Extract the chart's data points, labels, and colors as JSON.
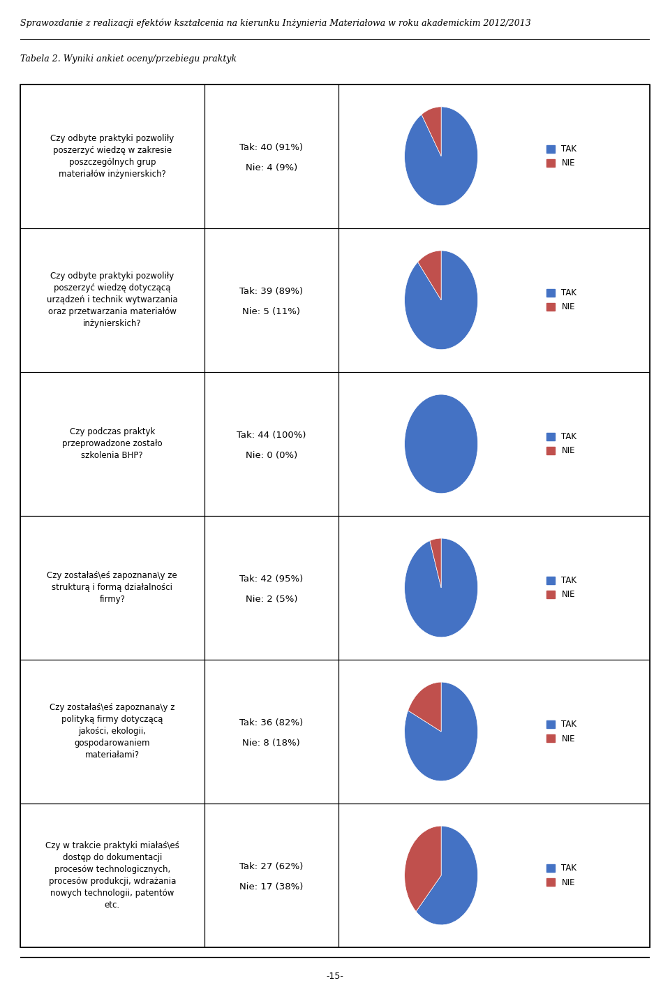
{
  "title": "Sprawozdanie z realizacji efektów kształcenia na kierunku Inżynieria Materiałowa w roku akademickim 2012/2013",
  "subtitle": "Tabela 2. Wyniki ankiet oceny/przebiegu praktyk",
  "page_number": "-15-",
  "tak_color": "#4472C4",
  "nie_color": "#C0504D",
  "rows": [
    {
      "question": "Czy odbyte praktyki pozwoliły\nposzerzyć wiedzę w zakresie\nposzczególnych grup\nmateriałów inżynierskich?",
      "tak_n": 40,
      "tak_pct": 91,
      "nie_n": 4,
      "nie_pct": 9
    },
    {
      "question": "Czy odbyte praktyki pozwoliły\nposzerzyć wiedzę dotyczącą\nurządzeń i technik wytwarzania\noraz przetwarzania materiałów\ninżynierskich?",
      "tak_n": 39,
      "tak_pct": 89,
      "nie_n": 5,
      "nie_pct": 11
    },
    {
      "question": "Czy podczas praktyk\nprzeprowadzone zostało\nszkolenia BHP?",
      "tak_n": 44,
      "tak_pct": 100,
      "nie_n": 0,
      "nie_pct": 0
    },
    {
      "question": "Czy zostałaś\\eś zapoznana\\y ze\nstrukturą i formą działalności\nfirmy?",
      "tak_n": 42,
      "tak_pct": 95,
      "nie_n": 2,
      "nie_pct": 5
    },
    {
      "question": "Czy zostałaś\\eś zapoznana\\y z\npolityką firmy dotyczącą\njakości, ekologii,\ngospodarowaniem\nmateriałami?",
      "tak_n": 36,
      "tak_pct": 82,
      "nie_n": 8,
      "nie_pct": 18
    },
    {
      "question": "Czy w trakcie praktyki miałaś\\eś\ndostęp do dokumentacji\nprocesów technologicznych,\nprocesów produkcji, wdrażania\nnowych technologii, patentów\netc.",
      "tak_n": 27,
      "tak_pct": 62,
      "nie_n": 17,
      "nie_pct": 38
    }
  ]
}
